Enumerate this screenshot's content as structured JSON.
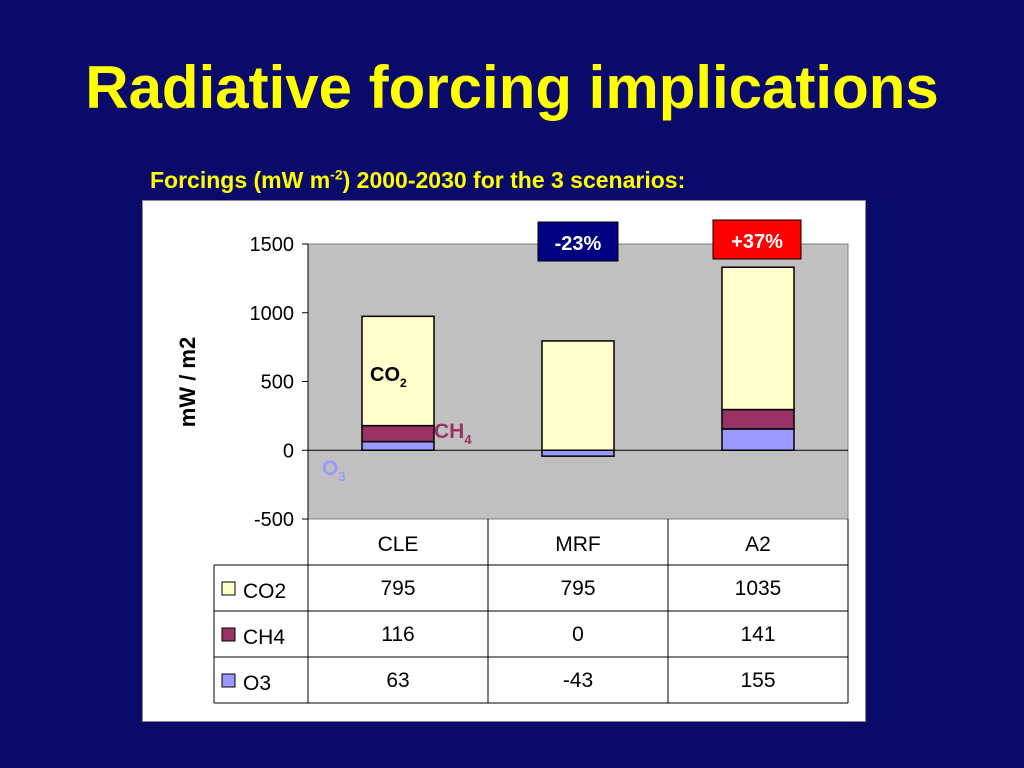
{
  "slide": {
    "title": "Radiative forcing implications",
    "subtitle_pre": "Forcings (mW m",
    "subtitle_sup": "-2",
    "subtitle_post": ") 2000-2030 for the 3 scenarios:"
  },
  "annotations": {
    "co2": "CO",
    "co2_sub": "2",
    "ch4": "CH",
    "ch4_sub": "4",
    "o3": "O",
    "o3_sub": "3",
    "mrf_change": "-23%",
    "a2_change": "+37%"
  },
  "colors": {
    "background": "#0a0a6b",
    "title": "#ffff00",
    "plot_area": "#c0c0c0",
    "co2": "#ffffcc",
    "ch4": "#993366",
    "o3": "#9999ff",
    "mrf_box": "#000080",
    "a2_box": "#ff0000"
  },
  "chart_data": {
    "type": "bar",
    "stacked": true,
    "categories": [
      "CLE",
      "MRF",
      "A2"
    ],
    "series": [
      {
        "name": "CO2",
        "values": [
          795,
          795,
          1035
        ]
      },
      {
        "name": "CH4",
        "values": [
          116,
          0,
          141
        ]
      },
      {
        "name": "O3",
        "values": [
          63,
          -43,
          155
        ]
      }
    ],
    "ylabel": "mW / m2",
    "ylim": [
      -500,
      1500
    ],
    "yticks": [
      "-500",
      "0",
      "500",
      "1000",
      "1500"
    ],
    "legend": "data-table",
    "table_values": [
      [
        "795",
        "795",
        "1035"
      ],
      [
        "116",
        "0",
        "141"
      ],
      [
        "63",
        "-43",
        "155"
      ]
    ]
  }
}
